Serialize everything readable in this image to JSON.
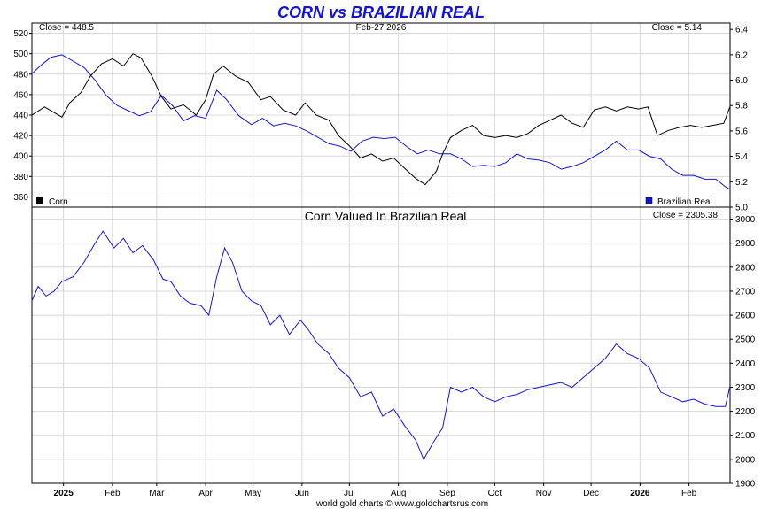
{
  "title": "CORN vs BRAZILIAN REAL",
  "footer": "world gold charts © www.goldchartsrus.com",
  "top_panel": {
    "date_label": "Feb-27  2026",
    "close_left": "Close = 448.5",
    "close_right": "Close = 5.14",
    "legend_left": "Corn",
    "legend_right": "Brazilian Real"
  },
  "bottom_panel": {
    "title": "Corn Valued In Brazilian Real",
    "close": "Close = 2305.38"
  },
  "colors": {
    "corn": "#000000",
    "real": "#1414d8",
    "ratio": "#1414d8",
    "title": "#1010e0"
  },
  "chart_data": [
    {
      "type": "line",
      "x_range": [
        "2024-12-12",
        "2026-02-27"
      ],
      "x_ticks": [
        {
          "date": "2025-01-01",
          "label": "2025",
          "bold": true
        },
        {
          "date": "2025-02-01",
          "label": "Feb"
        },
        {
          "date": "2025-03-01",
          "label": "Mar"
        },
        {
          "date": "2025-04-01",
          "label": "Apr"
        },
        {
          "date": "2025-05-01",
          "label": "May"
        },
        {
          "date": "2025-06-01",
          "label": "Jun"
        },
        {
          "date": "2025-07-01",
          "label": "Jul"
        },
        {
          "date": "2025-08-01",
          "label": "Aug"
        },
        {
          "date": "2025-09-01",
          "label": "Sep"
        },
        {
          "date": "2025-10-01",
          "label": "Oct"
        },
        {
          "date": "2025-11-01",
          "label": "Nov"
        },
        {
          "date": "2025-12-01",
          "label": "Dec"
        },
        {
          "date": "2026-01-01",
          "label": "2026",
          "bold": true
        },
        {
          "date": "2026-02-01",
          "label": "Feb"
        }
      ],
      "y_left": {
        "min": 350,
        "max": 530,
        "ticks": [
          360,
          380,
          400,
          420,
          440,
          460,
          480,
          500,
          520
        ]
      },
      "y_right": {
        "min": 5.0,
        "max": 6.45,
        "ticks": [
          "5.0",
          "5.2",
          "5.4",
          "5.6",
          "5.8",
          "6.0",
          "6.2",
          "6.4"
        ]
      },
      "series": [
        {
          "name": "Corn",
          "axis": "left",
          "points": [
            [
              "2024-12-12",
              440
            ],
            [
              "2024-12-20",
              448
            ],
            [
              "2024-12-31",
              438
            ],
            [
              "2025-01-05",
              452
            ],
            [
              "2025-01-12",
              462
            ],
            [
              "2025-01-18",
              478
            ],
            [
              "2025-01-25",
              490
            ],
            [
              "2025-02-01",
              495
            ],
            [
              "2025-02-08",
              488
            ],
            [
              "2025-02-14",
              500
            ],
            [
              "2025-02-19",
              496
            ],
            [
              "2025-02-26",
              478
            ],
            [
              "2025-03-04",
              458
            ],
            [
              "2025-03-10",
              446
            ],
            [
              "2025-03-18",
              450
            ],
            [
              "2025-03-26",
              440
            ],
            [
              "2025-04-01",
              455
            ],
            [
              "2025-04-06",
              480
            ],
            [
              "2025-04-12",
              488
            ],
            [
              "2025-04-20",
              478
            ],
            [
              "2025-04-28",
              472
            ],
            [
              "2025-05-06",
              455
            ],
            [
              "2025-05-12",
              458
            ],
            [
              "2025-05-20",
              445
            ],
            [
              "2025-05-28",
              440
            ],
            [
              "2025-06-03",
              452
            ],
            [
              "2025-06-10",
              440
            ],
            [
              "2025-06-18",
              435
            ],
            [
              "2025-06-24",
              420
            ],
            [
              "2025-07-01",
              410
            ],
            [
              "2025-07-08",
              398
            ],
            [
              "2025-07-15",
              402
            ],
            [
              "2025-07-22",
              395
            ],
            [
              "2025-07-29",
              398
            ],
            [
              "2025-08-05",
              388
            ],
            [
              "2025-08-12",
              378
            ],
            [
              "2025-08-18",
              372
            ],
            [
              "2025-08-25",
              385
            ],
            [
              "2025-08-29",
              402
            ],
            [
              "2025-09-03",
              418
            ],
            [
              "2025-09-10",
              425
            ],
            [
              "2025-09-17",
              430
            ],
            [
              "2025-09-24",
              420
            ],
            [
              "2025-10-01",
              418
            ],
            [
              "2025-10-08",
              420
            ],
            [
              "2025-10-15",
              418
            ],
            [
              "2025-10-22",
              422
            ],
            [
              "2025-10-29",
              430
            ],
            [
              "2025-11-05",
              435
            ],
            [
              "2025-11-12",
              440
            ],
            [
              "2025-11-19",
              432
            ],
            [
              "2025-11-26",
              428
            ],
            [
              "2025-12-03",
              445
            ],
            [
              "2025-12-10",
              448
            ],
            [
              "2025-12-17",
              444
            ],
            [
              "2025-12-24",
              448
            ],
            [
              "2025-12-31",
              446
            ],
            [
              "2026-01-06",
              448
            ],
            [
              "2026-01-12",
              420
            ],
            [
              "2026-01-19",
              425
            ],
            [
              "2026-01-26",
              428
            ],
            [
              "2026-02-02",
              430
            ],
            [
              "2026-02-09",
              428
            ],
            [
              "2026-02-16",
              430
            ],
            [
              "2026-02-23",
              432
            ],
            [
              "2026-02-27",
              448.5
            ]
          ]
        },
        {
          "name": "Brazilian Real",
          "axis": "right",
          "points": [
            [
              "2024-12-12",
              6.05
            ],
            [
              "2024-12-18",
              6.12
            ],
            [
              "2024-12-24",
              6.18
            ],
            [
              "2024-12-31",
              6.2
            ],
            [
              "2025-01-07",
              6.15
            ],
            [
              "2025-01-14",
              6.1
            ],
            [
              "2025-01-21",
              6.0
            ],
            [
              "2025-01-28",
              5.88
            ],
            [
              "2025-02-04",
              5.8
            ],
            [
              "2025-02-11",
              5.76
            ],
            [
              "2025-02-18",
              5.72
            ],
            [
              "2025-02-25",
              5.75
            ],
            [
              "2025-03-04",
              5.88
            ],
            [
              "2025-03-11",
              5.8
            ],
            [
              "2025-03-18",
              5.68
            ],
            [
              "2025-03-25",
              5.72
            ],
            [
              "2025-04-01",
              5.7
            ],
            [
              "2025-04-08",
              5.92
            ],
            [
              "2025-04-14",
              5.85
            ],
            [
              "2025-04-22",
              5.72
            ],
            [
              "2025-04-30",
              5.65
            ],
            [
              "2025-05-07",
              5.7
            ],
            [
              "2025-05-14",
              5.64
            ],
            [
              "2025-05-21",
              5.66
            ],
            [
              "2025-05-28",
              5.64
            ],
            [
              "2025-06-04",
              5.6
            ],
            [
              "2025-06-11",
              5.55
            ],
            [
              "2025-06-18",
              5.5
            ],
            [
              "2025-06-25",
              5.48
            ],
            [
              "2025-07-02",
              5.44
            ],
            [
              "2025-07-09",
              5.52
            ],
            [
              "2025-07-16",
              5.55
            ],
            [
              "2025-07-23",
              5.54
            ],
            [
              "2025-07-30",
              5.55
            ],
            [
              "2025-08-06",
              5.48
            ],
            [
              "2025-08-13",
              5.42
            ],
            [
              "2025-08-20",
              5.45
            ],
            [
              "2025-08-27",
              5.42
            ],
            [
              "2025-09-03",
              5.42
            ],
            [
              "2025-09-10",
              5.38
            ],
            [
              "2025-09-17",
              5.32
            ],
            [
              "2025-09-24",
              5.33
            ],
            [
              "2025-10-01",
              5.32
            ],
            [
              "2025-10-08",
              5.35
            ],
            [
              "2025-10-15",
              5.42
            ],
            [
              "2025-10-22",
              5.38
            ],
            [
              "2025-10-29",
              5.37
            ],
            [
              "2025-11-05",
              5.35
            ],
            [
              "2025-11-12",
              5.3
            ],
            [
              "2025-11-19",
              5.32
            ],
            [
              "2025-11-26",
              5.35
            ],
            [
              "2025-12-03",
              5.4
            ],
            [
              "2025-12-10",
              5.45
            ],
            [
              "2025-12-17",
              5.52
            ],
            [
              "2025-12-24",
              5.45
            ],
            [
              "2025-12-31",
              5.45
            ],
            [
              "2026-01-07",
              5.4
            ],
            [
              "2026-01-14",
              5.38
            ],
            [
              "2026-01-21",
              5.3
            ],
            [
              "2026-01-28",
              5.25
            ],
            [
              "2026-02-04",
              5.25
            ],
            [
              "2026-02-11",
              5.22
            ],
            [
              "2026-02-18",
              5.22
            ],
            [
              "2026-02-24",
              5.16
            ],
            [
              "2026-02-27",
              5.14
            ]
          ]
        }
      ]
    },
    {
      "type": "line",
      "title": "Corn Valued In Brazilian Real",
      "x_range": [
        "2024-12-12",
        "2026-02-27"
      ],
      "y": {
        "min": 1900,
        "max": 3050,
        "ticks": [
          1900,
          2000,
          2100,
          2200,
          2300,
          2400,
          2500,
          2600,
          2700,
          2800,
          2900,
          3000
        ]
      },
      "series": [
        {
          "name": "Corn Valued In Brazilian Real",
          "points": [
            [
              "2024-12-12",
              2660
            ],
            [
              "2024-12-16",
              2720
            ],
            [
              "2024-12-21",
              2680
            ],
            [
              "2024-12-26",
              2700
            ],
            [
              "2024-12-31",
              2740
            ],
            [
              "2025-01-07",
              2760
            ],
            [
              "2025-01-14",
              2820
            ],
            [
              "2025-01-21",
              2900
            ],
            [
              "2025-01-26",
              2950
            ],
            [
              "2025-02-02",
              2880
            ],
            [
              "2025-02-08",
              2920
            ],
            [
              "2025-02-14",
              2860
            ],
            [
              "2025-02-20",
              2890
            ],
            [
              "2025-02-27",
              2830
            ],
            [
              "2025-03-05",
              2750
            ],
            [
              "2025-03-10",
              2740
            ],
            [
              "2025-03-16",
              2680
            ],
            [
              "2025-03-22",
              2650
            ],
            [
              "2025-03-29",
              2640
            ],
            [
              "2025-04-03",
              2600
            ],
            [
              "2025-04-08",
              2760
            ],
            [
              "2025-04-13",
              2880
            ],
            [
              "2025-04-18",
              2820
            ],
            [
              "2025-04-24",
              2700
            ],
            [
              "2025-04-30",
              2660
            ],
            [
              "2025-05-06",
              2640
            ],
            [
              "2025-05-12",
              2560
            ],
            [
              "2025-05-18",
              2600
            ],
            [
              "2025-05-24",
              2520
            ],
            [
              "2025-05-31",
              2580
            ],
            [
              "2025-06-05",
              2540
            ],
            [
              "2025-06-11",
              2480
            ],
            [
              "2025-06-18",
              2440
            ],
            [
              "2025-06-24",
              2380
            ],
            [
              "2025-07-01",
              2340
            ],
            [
              "2025-07-08",
              2260
            ],
            [
              "2025-07-15",
              2280
            ],
            [
              "2025-07-22",
              2180
            ],
            [
              "2025-07-29",
              2210
            ],
            [
              "2025-08-05",
              2140
            ],
            [
              "2025-08-12",
              2080
            ],
            [
              "2025-08-17",
              2000
            ],
            [
              "2025-08-24",
              2080
            ],
            [
              "2025-08-29",
              2130
            ],
            [
              "2025-09-03",
              2300
            ],
            [
              "2025-09-10",
              2280
            ],
            [
              "2025-09-17",
              2300
            ],
            [
              "2025-09-24",
              2260
            ],
            [
              "2025-10-01",
              2240
            ],
            [
              "2025-10-08",
              2260
            ],
            [
              "2025-10-15",
              2270
            ],
            [
              "2025-10-22",
              2290
            ],
            [
              "2025-10-29",
              2300
            ],
            [
              "2025-11-05",
              2310
            ],
            [
              "2025-11-12",
              2320
            ],
            [
              "2025-11-19",
              2300
            ],
            [
              "2025-11-26",
              2340
            ],
            [
              "2025-12-03",
              2380
            ],
            [
              "2025-12-10",
              2420
            ],
            [
              "2025-12-17",
              2480
            ],
            [
              "2025-12-24",
              2440
            ],
            [
              "2025-12-31",
              2420
            ],
            [
              "2026-01-07",
              2380
            ],
            [
              "2026-01-14",
              2280
            ],
            [
              "2026-01-21",
              2260
            ],
            [
              "2026-01-28",
              2240
            ],
            [
              "2026-02-04",
              2250
            ],
            [
              "2026-02-11",
              2230
            ],
            [
              "2026-02-18",
              2220
            ],
            [
              "2026-02-24",
              2220
            ],
            [
              "2026-02-27",
              2305.38
            ]
          ]
        }
      ]
    }
  ]
}
